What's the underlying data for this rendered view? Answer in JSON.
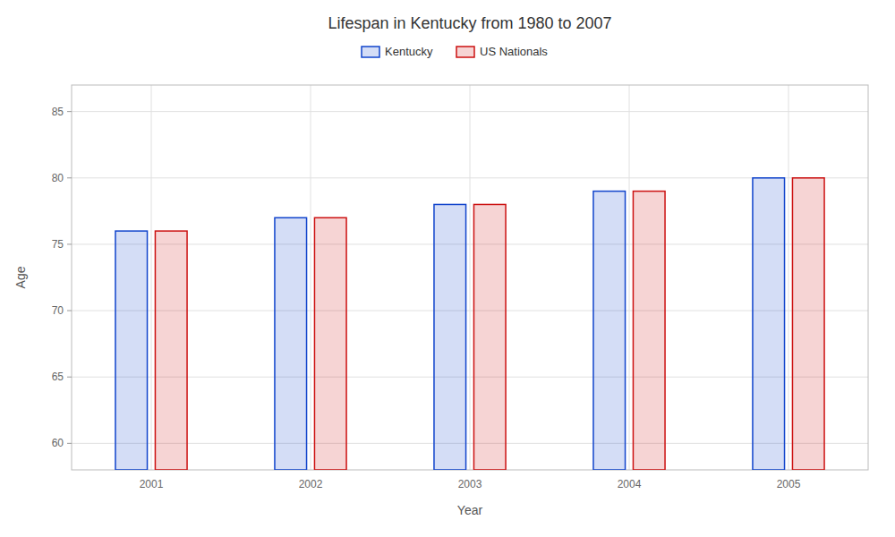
{
  "chart_data": {
    "type": "bar",
    "title": "Lifespan in Kentucky from 1980 to 2007",
    "x_label": "Year",
    "y_label": "Age",
    "categories": [
      "2001",
      "2002",
      "2003",
      "2004",
      "2005"
    ],
    "series": [
      {
        "name": "Kentucky",
        "color": "#1144cc",
        "values": [
          76,
          77,
          78,
          79,
          80
        ]
      },
      {
        "name": "US Nationals",
        "color": "#cc1111",
        "values": [
          76,
          77,
          78,
          79,
          80
        ]
      }
    ],
    "ylim": [
      58,
      87
    ],
    "yticks": [
      60,
      65,
      70,
      75,
      80,
      85
    ],
    "grid": true,
    "legend": "top"
  }
}
